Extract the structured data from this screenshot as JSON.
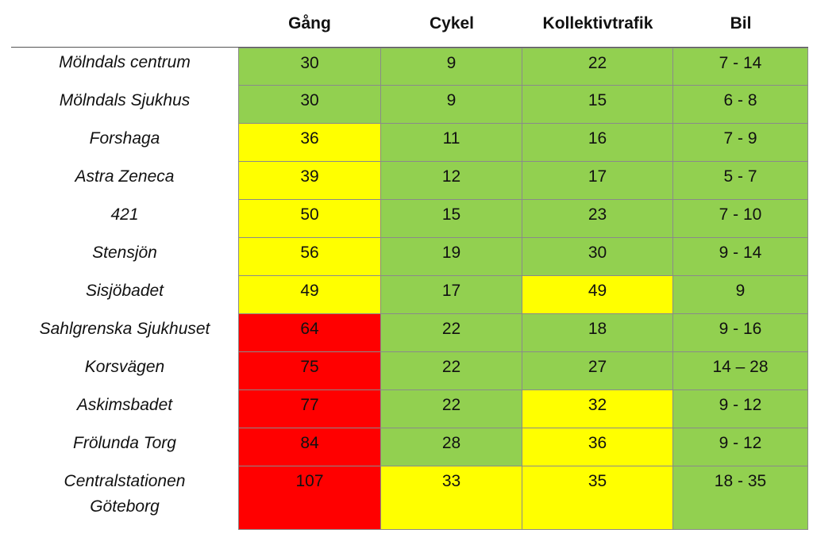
{
  "headers": [
    "Gång",
    "Cykel",
    "Kollektivtrafik",
    "Bil"
  ],
  "colors": {
    "green": "#92d050",
    "yellow": "#ffff00",
    "red": "#ff0000"
  },
  "rows": [
    {
      "place": "Mölndals centrum",
      "values": [
        "30",
        "9",
        "22",
        "7 - 14"
      ],
      "status": [
        "green",
        "green",
        "green",
        "green"
      ]
    },
    {
      "place": "Mölndals Sjukhus",
      "values": [
        "30",
        "9",
        "15",
        "6 - 8"
      ],
      "status": [
        "green",
        "green",
        "green",
        "green"
      ]
    },
    {
      "place": "Forshaga",
      "values": [
        "36",
        "11",
        "16",
        "7 - 9"
      ],
      "status": [
        "yellow",
        "green",
        "green",
        "green"
      ]
    },
    {
      "place": "Astra Zeneca",
      "values": [
        "39",
        "12",
        "17",
        "5 - 7"
      ],
      "status": [
        "yellow",
        "green",
        "green",
        "green"
      ]
    },
    {
      "place": "421",
      "values": [
        "50",
        "15",
        "23",
        "7 - 10"
      ],
      "status": [
        "yellow",
        "green",
        "green",
        "green"
      ]
    },
    {
      "place": "Stensjön",
      "values": [
        "56",
        "19",
        "30",
        "9 - 14"
      ],
      "status": [
        "yellow",
        "green",
        "green",
        "green"
      ]
    },
    {
      "place": "Sisjöbadet",
      "values": [
        "49",
        "17",
        "49",
        "9"
      ],
      "status": [
        "yellow",
        "green",
        "yellow",
        "green"
      ]
    },
    {
      "place": "Sahlgrenska Sjukhuset",
      "values": [
        "64",
        "22",
        "18",
        "9 - 16"
      ],
      "status": [
        "red",
        "green",
        "green",
        "green"
      ]
    },
    {
      "place": "Korsvägen",
      "values": [
        "75",
        "22",
        "27",
        "14 – 28"
      ],
      "status": [
        "red",
        "green",
        "green",
        "green"
      ]
    },
    {
      "place": "Askimsbadet",
      "values": [
        "77",
        "22",
        "32",
        "9 - 12"
      ],
      "status": [
        "red",
        "green",
        "yellow",
        "green"
      ]
    },
    {
      "place": "Frölunda Torg",
      "values": [
        "84",
        "28",
        "36",
        "9 - 12"
      ],
      "status": [
        "red",
        "green",
        "yellow",
        "green"
      ]
    },
    {
      "place": "Centralstationen\nGöteborg",
      "values": [
        "107",
        "33",
        "35",
        "18 - 35"
      ],
      "status": [
        "red",
        "yellow",
        "yellow",
        "green"
      ]
    }
  ]
}
